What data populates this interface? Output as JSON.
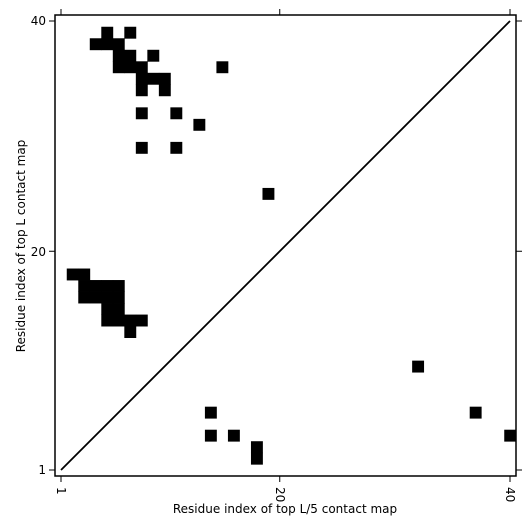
{
  "chart_data": {
    "type": "heatmap",
    "title": "",
    "xlabel": "Residue index of top L/5 contact map",
    "ylabel": "Residue index of top L contact map",
    "xlim": [
      1,
      40
    ],
    "ylim": [
      1,
      40
    ],
    "xticks": [
      "1",
      "20",
      "40"
    ],
    "yticks": [
      "1",
      "20",
      "40"
    ],
    "grid": false,
    "diagonal": true,
    "cell_color": "#000000",
    "upper_cells": [
      [
        5,
        39
      ],
      [
        7,
        39
      ],
      [
        4,
        38
      ],
      [
        5,
        38
      ],
      [
        6,
        38
      ],
      [
        6,
        37
      ],
      [
        7,
        37
      ],
      [
        9,
        37
      ],
      [
        6,
        36
      ],
      [
        7,
        36
      ],
      [
        8,
        36
      ],
      [
        15,
        36
      ],
      [
        8,
        35
      ],
      [
        9,
        35
      ],
      [
        10,
        35
      ],
      [
        8,
        34
      ],
      [
        10,
        34
      ],
      [
        8,
        32
      ],
      [
        11,
        32
      ],
      [
        13,
        31
      ],
      [
        8,
        29
      ],
      [
        11,
        29
      ],
      [
        19,
        25
      ],
      [
        2,
        18
      ],
      [
        3,
        18
      ],
      [
        3,
        17
      ],
      [
        4,
        17
      ],
      [
        5,
        17
      ],
      [
        6,
        17
      ],
      [
        3,
        16
      ],
      [
        4,
        16
      ],
      [
        5,
        16
      ],
      [
        6,
        16
      ],
      [
        5,
        15
      ],
      [
        6,
        15
      ],
      [
        5,
        14
      ],
      [
        6,
        14
      ],
      [
        7,
        14
      ],
      [
        8,
        14
      ],
      [
        7,
        13
      ]
    ],
    "lower_cells": [
      [
        14,
        6
      ],
      [
        37,
        6
      ],
      [
        14,
        4
      ],
      [
        16,
        4
      ],
      [
        18,
        3
      ],
      [
        18,
        2
      ],
      [
        40,
        4
      ],
      [
        32,
        10
      ]
    ]
  }
}
